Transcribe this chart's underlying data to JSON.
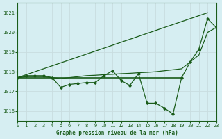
{
  "title": "Graphe pression niveau de la mer (hPa)",
  "bg_color": "#d6eef2",
  "grid_color": "#c8dde0",
  "line_color": "#1a5c1a",
  "xlim": [
    0,
    23
  ],
  "ylim": [
    1015.5,
    1021.5
  ],
  "yticks": [
    1016,
    1017,
    1018,
    1019,
    1020,
    1021
  ],
  "xticks": [
    0,
    1,
    2,
    3,
    4,
    5,
    6,
    7,
    8,
    9,
    10,
    11,
    12,
    13,
    14,
    15,
    16,
    17,
    18,
    19,
    20,
    21,
    22,
    23
  ],
  "trend_line_x": [
    0,
    22
  ],
  "trend_line_y": [
    1017.7,
    1021.0
  ],
  "flat_line_x": [
    0,
    19
  ],
  "flat_line_y": [
    1017.7,
    1017.7
  ],
  "data_x": [
    0,
    1,
    2,
    3,
    4,
    5,
    6,
    7,
    8,
    9,
    10,
    11,
    12,
    13,
    14,
    15,
    16,
    17,
    18,
    19,
    20,
    21,
    22,
    23
  ],
  "data_y": [
    1017.7,
    1017.8,
    1017.8,
    1017.8,
    1017.7,
    1017.2,
    1017.35,
    1017.4,
    1017.45,
    1017.45,
    1017.8,
    1018.05,
    1017.55,
    1017.3,
    1017.9,
    1016.4,
    1016.4,
    1016.15,
    1015.85,
    1017.7,
    1018.5,
    1019.15,
    1020.7,
    1020.25
  ],
  "line2_x": [
    0,
    1,
    2,
    3,
    4,
    5,
    6,
    7,
    8,
    9,
    10,
    11,
    12,
    13,
    14,
    15,
    16,
    17,
    18,
    19,
    20,
    21,
    22,
    23
  ],
  "line2_y": [
    1017.7,
    1017.75,
    1017.75,
    1017.75,
    1017.7,
    1017.65,
    1017.7,
    1017.75,
    1017.8,
    1017.82,
    1017.85,
    1017.87,
    1017.9,
    1017.92,
    1017.95,
    1017.97,
    1018.0,
    1018.05,
    1018.1,
    1018.15,
    1018.5,
    1018.85,
    1020.0,
    1020.25
  ]
}
